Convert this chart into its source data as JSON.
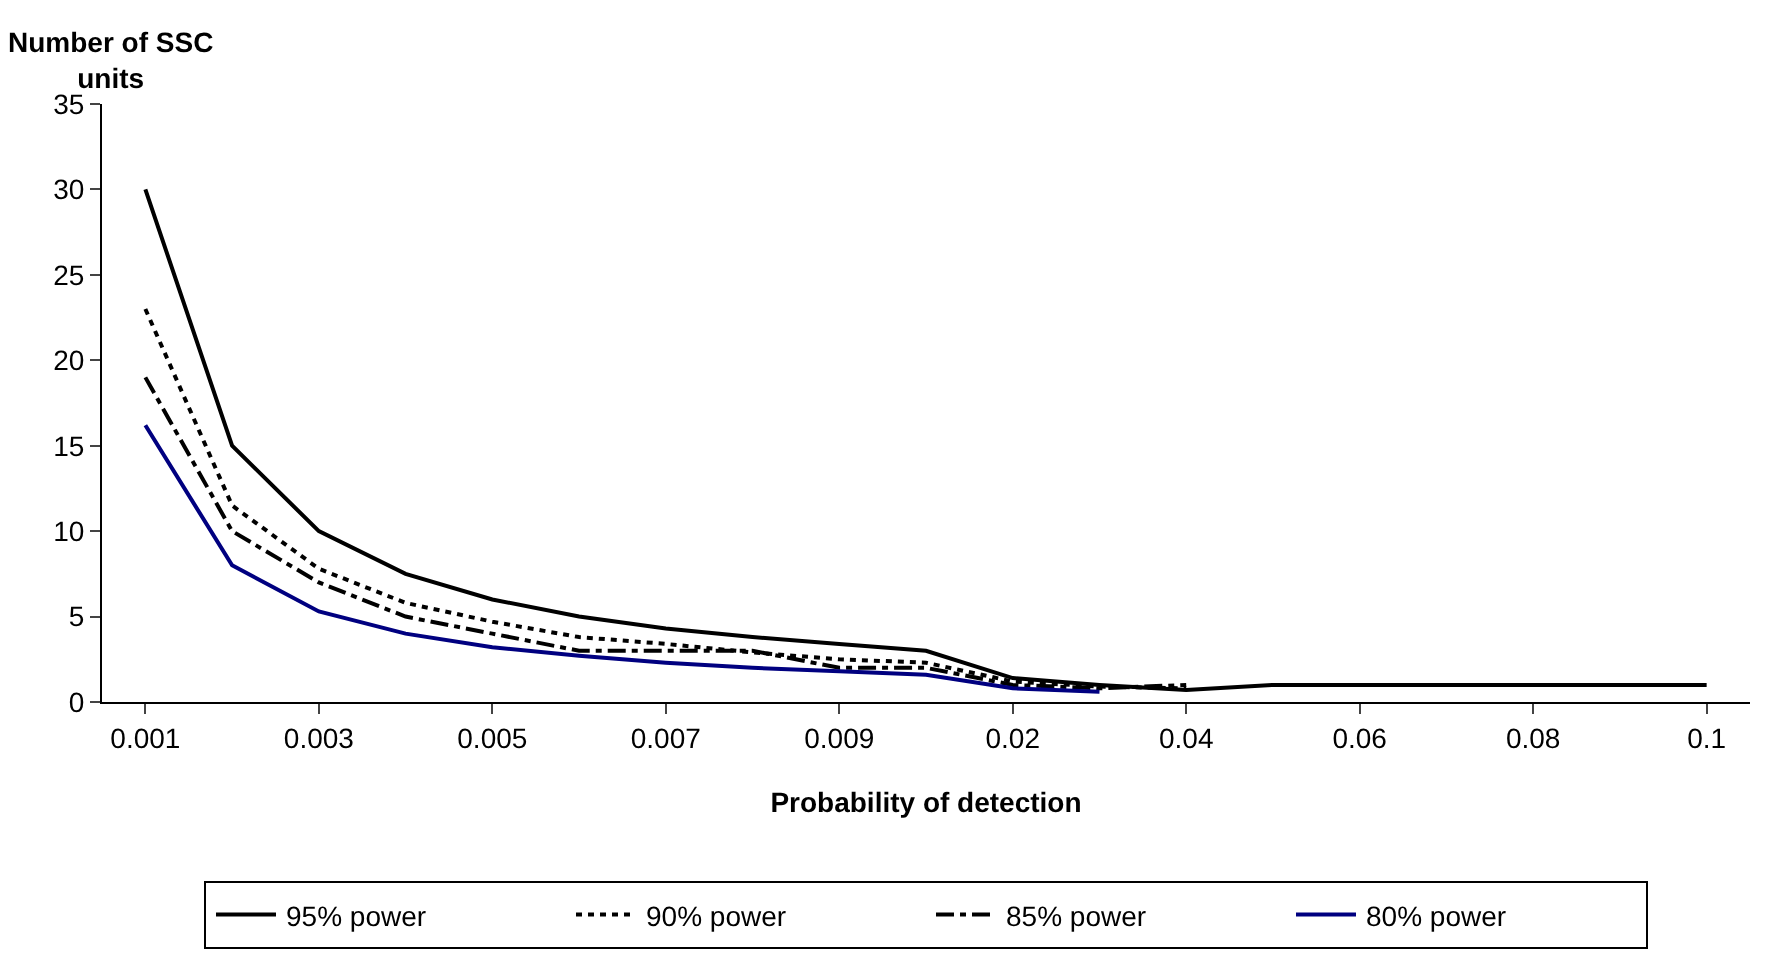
{
  "chart_data": {
    "type": "line",
    "xlabel": "Probability of detection",
    "ylabel": "Number of SSC units",
    "categories": [
      "0.001",
      null,
      "0.003",
      null,
      "0.005",
      null,
      "0.007",
      null,
      "0.009",
      null,
      "0.02",
      null,
      "0.04",
      null,
      "0.06",
      null,
      "0.08",
      null,
      "0.1"
    ],
    "series": [
      {
        "name": "95% power",
        "color": "#000000",
        "line_style": "solid",
        "values": [
          30,
          15,
          10,
          7.5,
          6,
          5,
          4.3,
          3.8,
          3.4,
          3.0,
          1.4,
          1.0,
          0.7,
          1.0,
          1.0,
          1.0,
          1.0,
          1.0,
          1.0
        ]
      },
      {
        "name": "90% power",
        "color": "#000000",
        "line_style": "dotted",
        "values": [
          23,
          11.5,
          7.8,
          5.8,
          4.7,
          3.8,
          3.4,
          2.9,
          2.5,
          2.3,
          1.2,
          0.9,
          0.8,
          null,
          null,
          null,
          null,
          null,
          null
        ]
      },
      {
        "name": "85% power",
        "color": "#000000",
        "line_style": "dashdot",
        "values": [
          19,
          10,
          7,
          5,
          4,
          3,
          3,
          3,
          2,
          2,
          1,
          0.8,
          1.0,
          null,
          null,
          null,
          null,
          null,
          null
        ]
      },
      {
        "name": "80% power",
        "color": "#000080",
        "line_style": "solid",
        "values": [
          16.2,
          8,
          5.3,
          4,
          3.2,
          2.7,
          2.3,
          2.0,
          1.8,
          1.6,
          0.8,
          0.6,
          null,
          null,
          null,
          null,
          null,
          null,
          null
        ]
      }
    ],
    "ylim": [
      0,
      35
    ],
    "yticks": [
      0,
      5,
      10,
      15,
      20,
      25,
      30,
      35
    ],
    "legend": "bottom",
    "marker": "none"
  }
}
